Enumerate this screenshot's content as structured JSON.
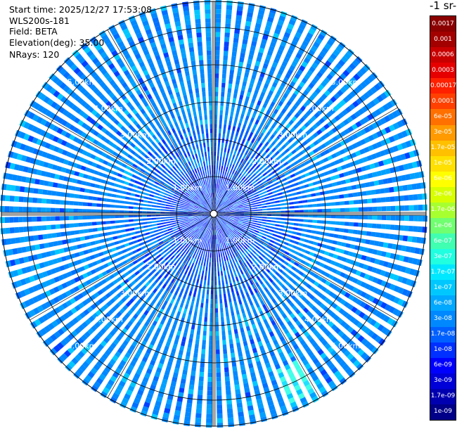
{
  "info": {
    "start_time": "Start time: 2025/12/27 17:53:08",
    "instrument": "WLS200s-181",
    "field": "Field: BETA",
    "elevation": "Elevation(deg): 35.00",
    "nrays": "NRays: 120"
  },
  "colorbar": {
    "title": "-1 sr-",
    "labels": [
      "0.0017",
      "0.001",
      "0.0006",
      "0.0003",
      "0.00017",
      "0.0001",
      "6e-05",
      "3e-05",
      "1.7e-05",
      "1e-05",
      "6e-06",
      "3e-06",
      "1.7e-06",
      "1e-06",
      "6e-07",
      "3e-07",
      "1.7e-07",
      "1e-07",
      "6e-08",
      "3e-08",
      "1.7e-08",
      "1e-08",
      "6e-09",
      "3e-09",
      "1.7e-09",
      "1e-09"
    ],
    "colors": [
      "#8b0000",
      "#a30000",
      "#c80000",
      "#e60000",
      "#ff2000",
      "#ff4000",
      "#ff7000",
      "#ff9a00",
      "#ffc000",
      "#ffe000",
      "#ffff00",
      "#d8ff00",
      "#a8ff30",
      "#70ff70",
      "#40ffb0",
      "#20ffe0",
      "#00e8ff",
      "#00c8ff",
      "#00a8ff",
      "#0088ff",
      "#0060ff",
      "#0030ff",
      "#0000ff",
      "#0000d8",
      "#0000b0",
      "#000088"
    ]
  },
  "range_labels": [
    "1.00km",
    "2.00km",
    "3.00km",
    "4.00km",
    "5.00km"
  ],
  "chart_data": {
    "type": "heatmap",
    "projection": "polar PPI",
    "field": "BETA",
    "elevation_deg": 35.0,
    "n_rays": 120,
    "range_rings_km": [
      1,
      2,
      3,
      4,
      5
    ],
    "max_range_km": 5.7,
    "color_scale": "log",
    "value_range": [
      1e-09,
      0.0017
    ],
    "dominant_value": "3e-08",
    "enhanced_region": {
      "azimuth_deg": [
        150,
        160
      ],
      "range_km": [
        4.5,
        5.5
      ],
      "value": "1.7e-07"
    }
  }
}
